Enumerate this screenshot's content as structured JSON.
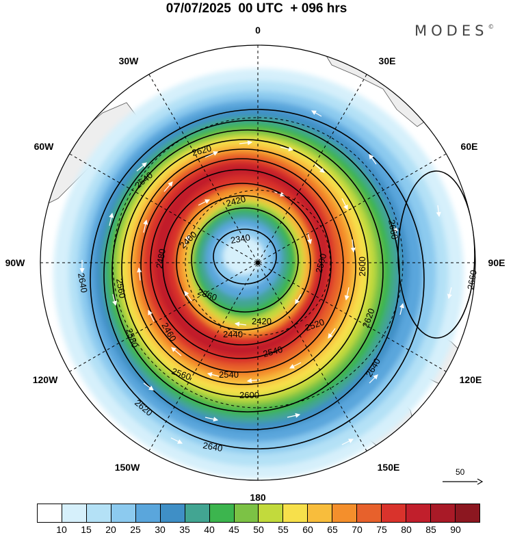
{
  "header": {
    "title": "07/07/2025  00 UTC  + 096 hrs",
    "brand": "MODES"
  },
  "longitude_labels": [
    "0",
    "30E",
    "60E",
    "90E",
    "120E",
    "150E",
    "180",
    "150W",
    "120W",
    "90W",
    "60W",
    "30W"
  ],
  "contour_labels": [
    "2340",
    "2360",
    "2400",
    "2420",
    "2420",
    "2440",
    "2460",
    "2480",
    "2500",
    "2520",
    "2540",
    "2540",
    "2560",
    "2560",
    "2580",
    "2600",
    "2600",
    "2620",
    "2620",
    "2620",
    "2640",
    "2640",
    "2640",
    "2640",
    "2660",
    "2660"
  ],
  "legend": {
    "ticks": [
      "10",
      "15",
      "20",
      "25",
      "30",
      "35",
      "40",
      "45",
      "50",
      "55",
      "60",
      "65",
      "70",
      "75",
      "80",
      "85",
      "90"
    ],
    "colors": [
      "#ffffff",
      "#d6f0fb",
      "#b4e1f6",
      "#8ccaef",
      "#5aa6dc",
      "#3f8fc6",
      "#42a592",
      "#3cb54e",
      "#7cc245",
      "#c2da3c",
      "#f7e04b",
      "#f8bd3c",
      "#f48f2c",
      "#e7612c",
      "#d9332c",
      "#c11f2c",
      "#a91a27",
      "#8c1720"
    ]
  },
  "reference_vector": {
    "label": "50"
  }
}
